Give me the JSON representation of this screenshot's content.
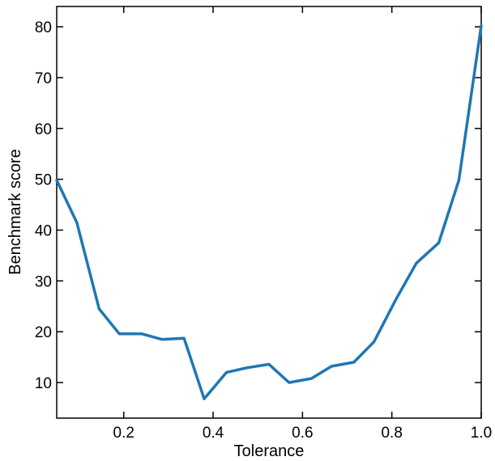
{
  "chart_data": {
    "type": "line",
    "title": "",
    "xlabel": "Tolerance",
    "ylabel": "Benchmark score",
    "xlim": [
      0.05,
      1.0
    ],
    "ylim": [
      3.0,
      84.0
    ],
    "grid": false,
    "xticks": [
      0.2,
      0.4,
      0.6,
      0.8,
      1.0
    ],
    "xtick_labels": [
      "0.2",
      "0.4",
      "0.6",
      "0.8",
      "1.0"
    ],
    "yticks": [
      10,
      20,
      30,
      40,
      50,
      60,
      70,
      80
    ],
    "ytick_labels": [
      "10",
      "20",
      "30",
      "40",
      "50",
      "60",
      "70",
      "80"
    ],
    "line_color": "#1f77b4",
    "series": [
      {
        "x": [
          0.05,
          0.095,
          0.145,
          0.19,
          0.24,
          0.285,
          0.335,
          0.38,
          0.43,
          0.475,
          0.525,
          0.57,
          0.62,
          0.665,
          0.715,
          0.76,
          0.81,
          0.855,
          0.905,
          0.95,
          1.0
        ],
        "values": [
          49.8,
          41.5,
          24.5,
          19.6,
          19.6,
          18.5,
          18.7,
          6.8,
          12.0,
          12.9,
          13.6,
          10.0,
          10.8,
          13.2,
          14.0,
          18.0,
          26.5,
          33.5,
          37.5,
          49.8,
          80.2
        ]
      }
    ]
  }
}
